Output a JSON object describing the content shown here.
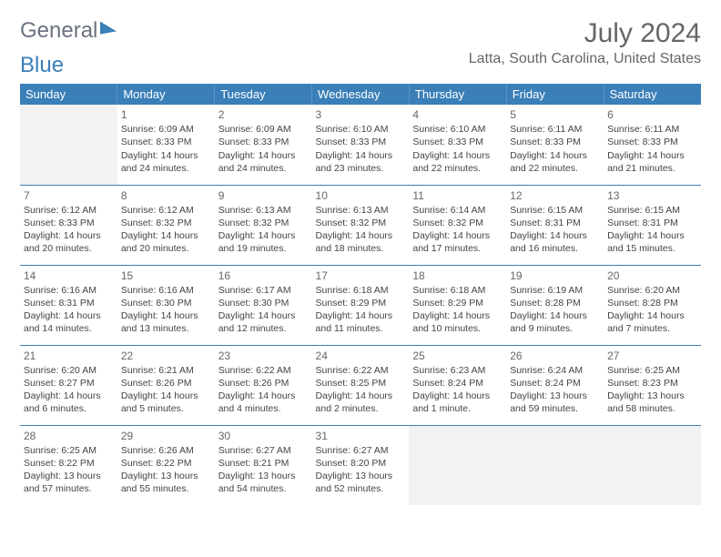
{
  "brand": {
    "part1": "General",
    "part2": "Blue"
  },
  "title": "July 2024",
  "location": "Latta, South Carolina, United States",
  "colors": {
    "header_bg": "#3a7fb8",
    "header_text": "#ffffff",
    "border": "#3a7fb8",
    "text": "#444444",
    "muted": "#666666",
    "empty_bg": "#f2f2f2"
  },
  "weekdays": [
    "Sunday",
    "Monday",
    "Tuesday",
    "Wednesday",
    "Thursday",
    "Friday",
    "Saturday"
  ],
  "weeks": [
    [
      null,
      {
        "n": "1",
        "sr": "Sunrise: 6:09 AM",
        "ss": "Sunset: 8:33 PM",
        "d1": "Daylight: 14 hours",
        "d2": "and 24 minutes."
      },
      {
        "n": "2",
        "sr": "Sunrise: 6:09 AM",
        "ss": "Sunset: 8:33 PM",
        "d1": "Daylight: 14 hours",
        "d2": "and 24 minutes."
      },
      {
        "n": "3",
        "sr": "Sunrise: 6:10 AM",
        "ss": "Sunset: 8:33 PM",
        "d1": "Daylight: 14 hours",
        "d2": "and 23 minutes."
      },
      {
        "n": "4",
        "sr": "Sunrise: 6:10 AM",
        "ss": "Sunset: 8:33 PM",
        "d1": "Daylight: 14 hours",
        "d2": "and 22 minutes."
      },
      {
        "n": "5",
        "sr": "Sunrise: 6:11 AM",
        "ss": "Sunset: 8:33 PM",
        "d1": "Daylight: 14 hours",
        "d2": "and 22 minutes."
      },
      {
        "n": "6",
        "sr": "Sunrise: 6:11 AM",
        "ss": "Sunset: 8:33 PM",
        "d1": "Daylight: 14 hours",
        "d2": "and 21 minutes."
      }
    ],
    [
      {
        "n": "7",
        "sr": "Sunrise: 6:12 AM",
        "ss": "Sunset: 8:33 PM",
        "d1": "Daylight: 14 hours",
        "d2": "and 20 minutes."
      },
      {
        "n": "8",
        "sr": "Sunrise: 6:12 AM",
        "ss": "Sunset: 8:32 PM",
        "d1": "Daylight: 14 hours",
        "d2": "and 20 minutes."
      },
      {
        "n": "9",
        "sr": "Sunrise: 6:13 AM",
        "ss": "Sunset: 8:32 PM",
        "d1": "Daylight: 14 hours",
        "d2": "and 19 minutes."
      },
      {
        "n": "10",
        "sr": "Sunrise: 6:13 AM",
        "ss": "Sunset: 8:32 PM",
        "d1": "Daylight: 14 hours",
        "d2": "and 18 minutes."
      },
      {
        "n": "11",
        "sr": "Sunrise: 6:14 AM",
        "ss": "Sunset: 8:32 PM",
        "d1": "Daylight: 14 hours",
        "d2": "and 17 minutes."
      },
      {
        "n": "12",
        "sr": "Sunrise: 6:15 AM",
        "ss": "Sunset: 8:31 PM",
        "d1": "Daylight: 14 hours",
        "d2": "and 16 minutes."
      },
      {
        "n": "13",
        "sr": "Sunrise: 6:15 AM",
        "ss": "Sunset: 8:31 PM",
        "d1": "Daylight: 14 hours",
        "d2": "and 15 minutes."
      }
    ],
    [
      {
        "n": "14",
        "sr": "Sunrise: 6:16 AM",
        "ss": "Sunset: 8:31 PM",
        "d1": "Daylight: 14 hours",
        "d2": "and 14 minutes."
      },
      {
        "n": "15",
        "sr": "Sunrise: 6:16 AM",
        "ss": "Sunset: 8:30 PM",
        "d1": "Daylight: 14 hours",
        "d2": "and 13 minutes."
      },
      {
        "n": "16",
        "sr": "Sunrise: 6:17 AM",
        "ss": "Sunset: 8:30 PM",
        "d1": "Daylight: 14 hours",
        "d2": "and 12 minutes."
      },
      {
        "n": "17",
        "sr": "Sunrise: 6:18 AM",
        "ss": "Sunset: 8:29 PM",
        "d1": "Daylight: 14 hours",
        "d2": "and 11 minutes."
      },
      {
        "n": "18",
        "sr": "Sunrise: 6:18 AM",
        "ss": "Sunset: 8:29 PM",
        "d1": "Daylight: 14 hours",
        "d2": "and 10 minutes."
      },
      {
        "n": "19",
        "sr": "Sunrise: 6:19 AM",
        "ss": "Sunset: 8:28 PM",
        "d1": "Daylight: 14 hours",
        "d2": "and 9 minutes."
      },
      {
        "n": "20",
        "sr": "Sunrise: 6:20 AM",
        "ss": "Sunset: 8:28 PM",
        "d1": "Daylight: 14 hours",
        "d2": "and 7 minutes."
      }
    ],
    [
      {
        "n": "21",
        "sr": "Sunrise: 6:20 AM",
        "ss": "Sunset: 8:27 PM",
        "d1": "Daylight: 14 hours",
        "d2": "and 6 minutes."
      },
      {
        "n": "22",
        "sr": "Sunrise: 6:21 AM",
        "ss": "Sunset: 8:26 PM",
        "d1": "Daylight: 14 hours",
        "d2": "and 5 minutes."
      },
      {
        "n": "23",
        "sr": "Sunrise: 6:22 AM",
        "ss": "Sunset: 8:26 PM",
        "d1": "Daylight: 14 hours",
        "d2": "and 4 minutes."
      },
      {
        "n": "24",
        "sr": "Sunrise: 6:22 AM",
        "ss": "Sunset: 8:25 PM",
        "d1": "Daylight: 14 hours",
        "d2": "and 2 minutes."
      },
      {
        "n": "25",
        "sr": "Sunrise: 6:23 AM",
        "ss": "Sunset: 8:24 PM",
        "d1": "Daylight: 14 hours",
        "d2": "and 1 minute."
      },
      {
        "n": "26",
        "sr": "Sunrise: 6:24 AM",
        "ss": "Sunset: 8:24 PM",
        "d1": "Daylight: 13 hours",
        "d2": "and 59 minutes."
      },
      {
        "n": "27",
        "sr": "Sunrise: 6:25 AM",
        "ss": "Sunset: 8:23 PM",
        "d1": "Daylight: 13 hours",
        "d2": "and 58 minutes."
      }
    ],
    [
      {
        "n": "28",
        "sr": "Sunrise: 6:25 AM",
        "ss": "Sunset: 8:22 PM",
        "d1": "Daylight: 13 hours",
        "d2": "and 57 minutes."
      },
      {
        "n": "29",
        "sr": "Sunrise: 6:26 AM",
        "ss": "Sunset: 8:22 PM",
        "d1": "Daylight: 13 hours",
        "d2": "and 55 minutes."
      },
      {
        "n": "30",
        "sr": "Sunrise: 6:27 AM",
        "ss": "Sunset: 8:21 PM",
        "d1": "Daylight: 13 hours",
        "d2": "and 54 minutes."
      },
      {
        "n": "31",
        "sr": "Sunrise: 6:27 AM",
        "ss": "Sunset: 8:20 PM",
        "d1": "Daylight: 13 hours",
        "d2": "and 52 minutes."
      },
      null,
      null,
      null
    ]
  ]
}
